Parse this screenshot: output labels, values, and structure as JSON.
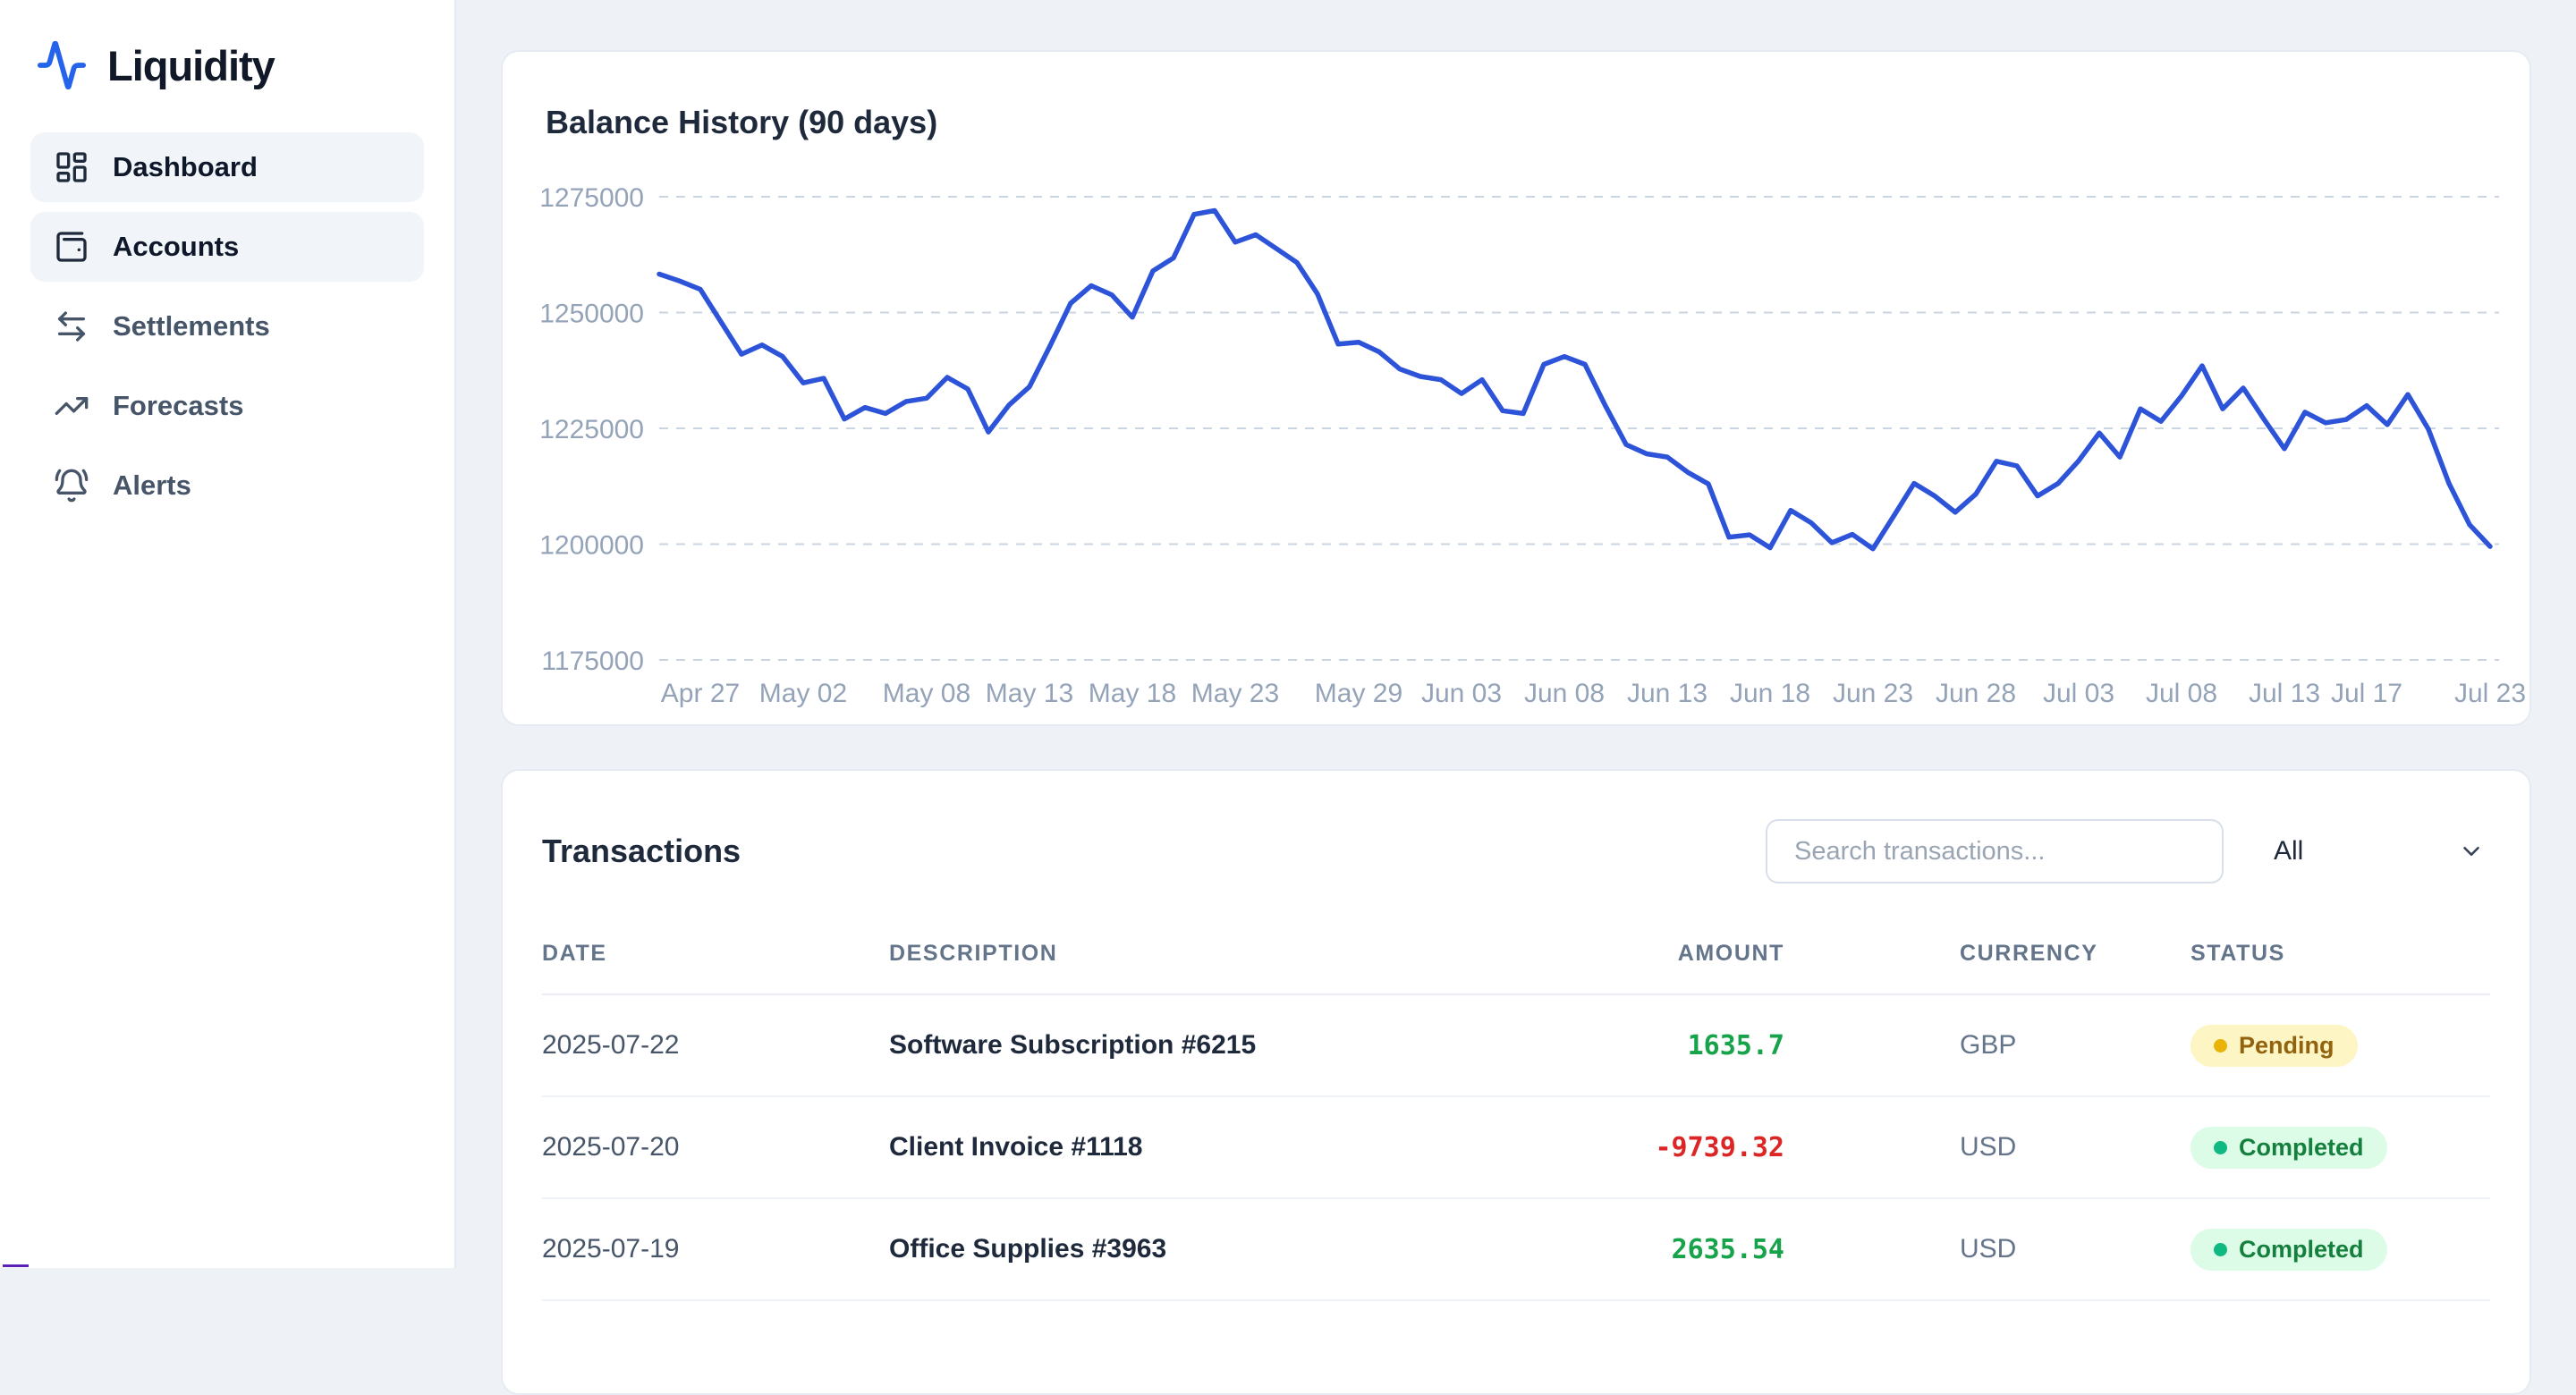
{
  "app": {
    "name": "Liquidity"
  },
  "sidebar": {
    "items": [
      {
        "label": "Dashboard",
        "icon": "dashboard-grid-icon",
        "active": true
      },
      {
        "label": "Accounts",
        "icon": "wallet-icon",
        "active": true
      },
      {
        "label": "Settlements",
        "icon": "arrows-left-right-icon",
        "active": false
      },
      {
        "label": "Forecasts",
        "icon": "trending-up-icon",
        "active": false
      },
      {
        "label": "Alerts",
        "icon": "bell-icon",
        "active": false
      }
    ]
  },
  "balance_card": {
    "title": "Balance History (90 days)"
  },
  "chart_data": {
    "type": "line",
    "title": "Balance History (90 days)",
    "xlabel": "",
    "ylabel": "",
    "grid": "horizontal-dashed",
    "legend": false,
    "x_start_date": "2025-04-25",
    "x_end_date": "2025-07-23",
    "ylim": [
      1175000,
      1283000
    ],
    "y_ticks": [
      1275000,
      1250000,
      1225000,
      1200000,
      1175000
    ],
    "x_ticks": [
      {
        "index": 2,
        "label": "Apr 27"
      },
      {
        "index": 7,
        "label": "May 02"
      },
      {
        "index": 13,
        "label": "May 08"
      },
      {
        "index": 18,
        "label": "May 13"
      },
      {
        "index": 23,
        "label": "May 18"
      },
      {
        "index": 28,
        "label": "May 23"
      },
      {
        "index": 34,
        "label": "May 29"
      },
      {
        "index": 39,
        "label": "Jun 03"
      },
      {
        "index": 44,
        "label": "Jun 08"
      },
      {
        "index": 49,
        "label": "Jun 13"
      },
      {
        "index": 54,
        "label": "Jun 18"
      },
      {
        "index": 59,
        "label": "Jun 23"
      },
      {
        "index": 64,
        "label": "Jun 28"
      },
      {
        "index": 69,
        "label": "Jul 03"
      },
      {
        "index": 74,
        "label": "Jul 08"
      },
      {
        "index": 79,
        "label": "Jul 13"
      },
      {
        "index": 83,
        "label": "Jul 17"
      },
      {
        "index": 89,
        "label": "Jul 23"
      }
    ],
    "series": [
      {
        "name": "Balance",
        "color": "#2d53d8",
        "values": [
          1258300,
          1256800,
          1255000,
          1248000,
          1241000,
          1243000,
          1240500,
          1234800,
          1235800,
          1227000,
          1229500,
          1228200,
          1230800,
          1231500,
          1236000,
          1233500,
          1224200,
          1230000,
          1234000,
          1242800,
          1252000,
          1255800,
          1253800,
          1249000,
          1259000,
          1261800,
          1271200,
          1272000,
          1265200,
          1266800,
          1263800,
          1260800,
          1254000,
          1243200,
          1243600,
          1241500,
          1237800,
          1236200,
          1235500,
          1232500,
          1235500,
          1228800,
          1228200,
          1238800,
          1240500,
          1238800,
          1229800,
          1221500,
          1219500,
          1218800,
          1215500,
          1213000,
          1201500,
          1202000,
          1199200,
          1207300,
          1204600,
          1200300,
          1202100,
          1199000,
          1206000,
          1213100,
          1210400,
          1206900,
          1210800,
          1217900,
          1216900,
          1210400,
          1213100,
          1218000,
          1224000,
          1218800,
          1229200,
          1226500,
          1232000,
          1238500,
          1229200,
          1233700,
          1227000,
          1220600,
          1228500,
          1226200,
          1226900,
          1229900,
          1225800,
          1232300,
          1224800,
          1213100,
          1204200,
          1199500
        ]
      }
    ]
  },
  "transactions": {
    "title": "Transactions",
    "search_placeholder": "Search transactions...",
    "filter_value": "All",
    "columns": [
      "DATE",
      "DESCRIPTION",
      "AMOUNT",
      "CURRENCY",
      "STATUS"
    ],
    "rows": [
      {
        "date": "2025-07-22",
        "description": "Software Subscription #6215",
        "amount": "1635.7",
        "amount_sign": "positive",
        "currency": "GBP",
        "status": "Pending",
        "status_type": "pending"
      },
      {
        "date": "2025-07-20",
        "description": "Client Invoice #1118",
        "amount": "-9739.32",
        "amount_sign": "negative",
        "currency": "USD",
        "status": "Completed",
        "status_type": "completed"
      },
      {
        "date": "2025-07-19",
        "description": "Office Supplies #3963",
        "amount": "2635.54",
        "amount_sign": "positive",
        "currency": "USD",
        "status": "Completed",
        "status_type": "completed"
      }
    ]
  },
  "colors": {
    "brand_blue": "#2563eb",
    "chart_line": "#2d53d8",
    "amount_positive": "#16a34a",
    "amount_negative": "#dc2626",
    "pending_bg": "#fdf5c3",
    "pending_text": "#92620e",
    "pending_dot": "#eab308",
    "completed_bg": "#dcfce7",
    "completed_text": "#15803d",
    "completed_dot": "#10b981"
  }
}
